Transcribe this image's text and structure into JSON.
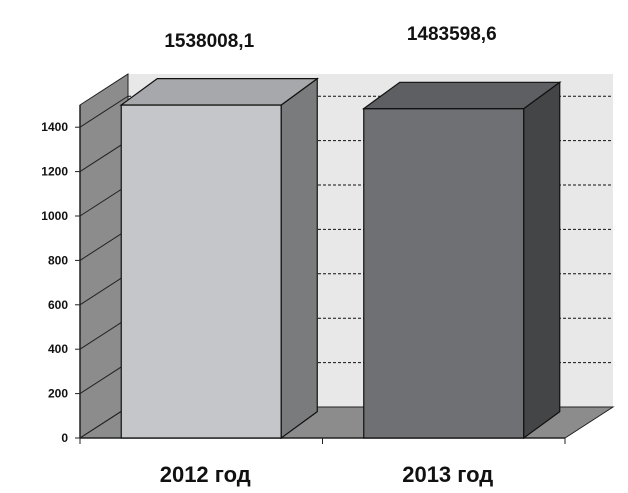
{
  "chart_data": {
    "type": "bar",
    "categories": [
      "2012 год",
      "2013 год"
    ],
    "values": [
      1538.0081,
      1483.5986
    ],
    "data_labels": [
      "1538008,1",
      "1483598,6"
    ],
    "ylim": [
      0,
      1500
    ],
    "yticks": [
      0,
      200,
      400,
      600,
      800,
      1000,
      1200,
      1400
    ],
    "title": "",
    "xlabel": "",
    "ylabel": "",
    "grid": true,
    "three_d": true,
    "legend": "none",
    "colors": {
      "bars": [
        "#c4c6c9",
        "#6e7073"
      ],
      "wall_left": "#8c8c8c",
      "wall_back": "#e8e8e8",
      "floor": "#8c8c8c",
      "gridline": "#111111"
    }
  }
}
